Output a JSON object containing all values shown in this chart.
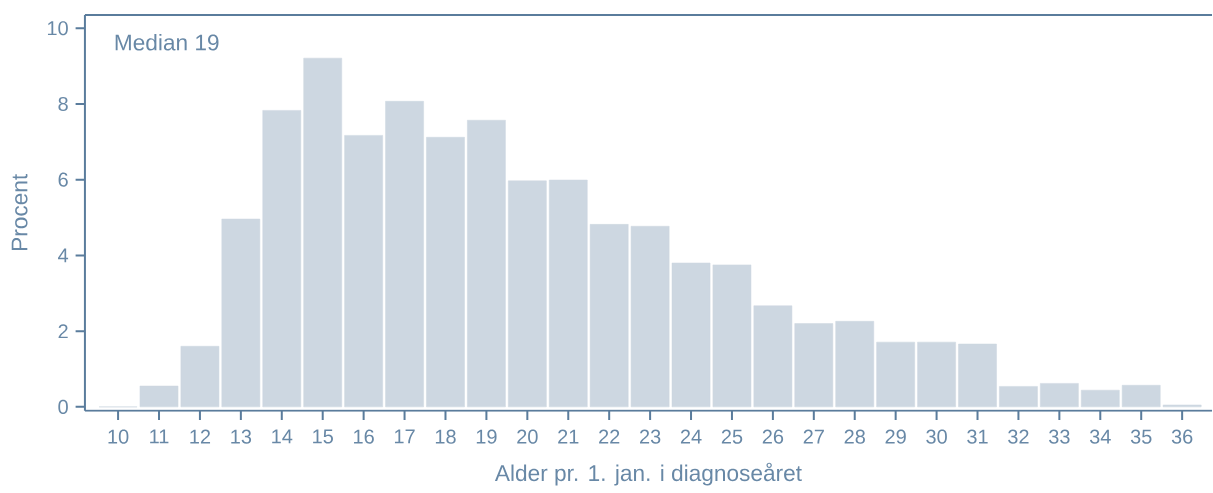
{
  "chart_data": {
    "type": "bar",
    "xlabel": "Alder pr. 1. jan. i diagnoseåret",
    "ylabel": "Procent",
    "annotations": [
      "Median 19"
    ],
    "categories": [
      "10",
      "11",
      "12",
      "13",
      "14",
      "15",
      "16",
      "17",
      "18",
      "19",
      "20",
      "21",
      "22",
      "23",
      "24",
      "25",
      "26",
      "27",
      "28",
      "29",
      "30",
      "31",
      "32",
      "33",
      "34",
      "35",
      "36"
    ],
    "values": [
      0,
      0.55,
      1.6,
      4.96,
      7.83,
      9.21,
      7.17,
      8.07,
      7.12,
      7.57,
      5.97,
      5.99,
      4.82,
      4.77,
      3.8,
      3.75,
      2.67,
      2.2,
      2.26,
      1.71,
      1.71,
      1.66,
      0.54,
      0.62,
      0.44,
      0.57,
      0.05
    ],
    "color": "#cdd7e1",
    "ylim": [
      -0.1,
      10.35
    ],
    "yticks": [
      0,
      2,
      4,
      6,
      8,
      10
    ]
  }
}
